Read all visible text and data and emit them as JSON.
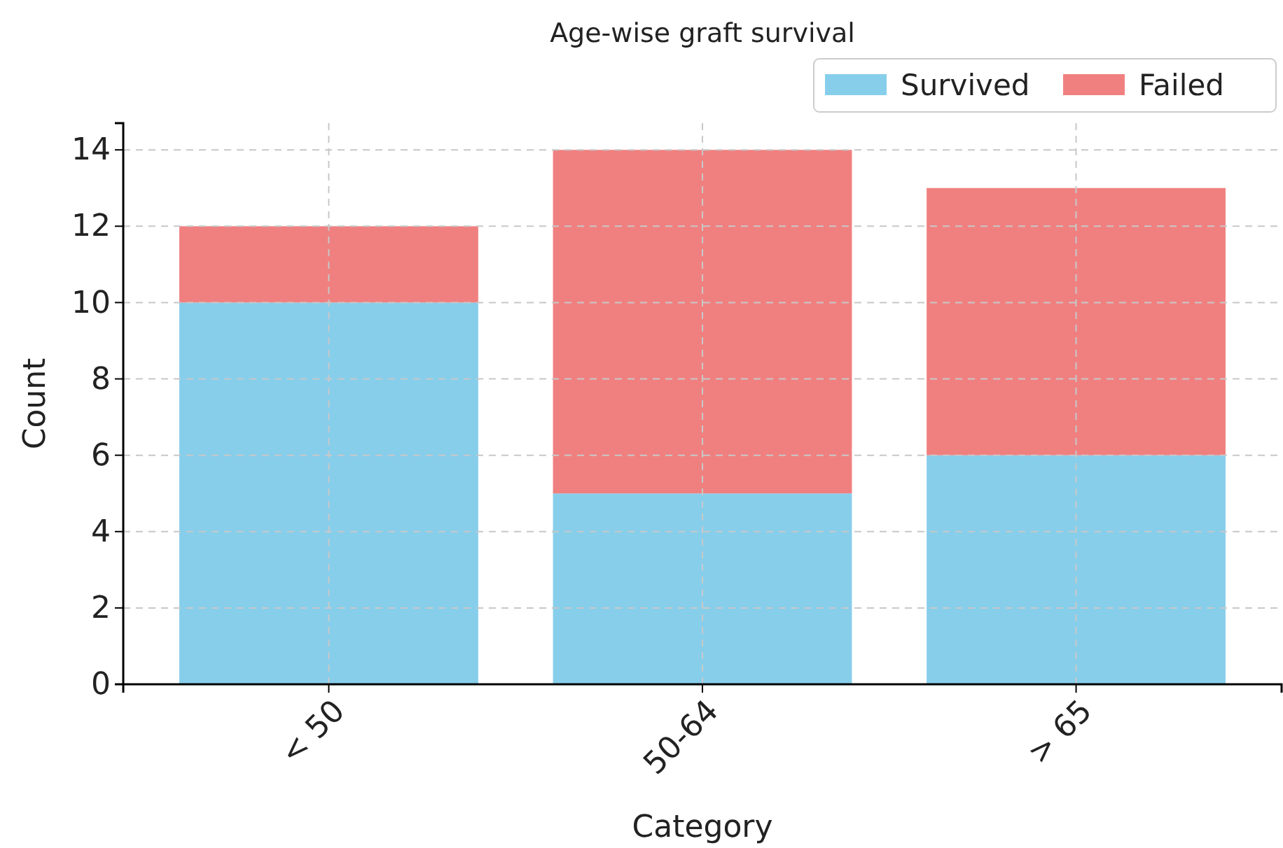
{
  "chart_data": {
    "type": "bar",
    "title": "Age-wise graft survival",
    "xlabel": "Category",
    "ylabel": "Count",
    "categories": [
      "< 50",
      "50-64",
      "> 65"
    ],
    "stacked": true,
    "series": [
      {
        "name": "Survived",
        "color": "#87ceeb",
        "values": [
          10,
          5,
          6
        ]
      },
      {
        "name": "Failed",
        "color": "#f08080",
        "values": [
          2,
          9,
          7
        ]
      }
    ],
    "ylim": [
      0,
      14.7
    ],
    "yticks": [
      0,
      2,
      4,
      6,
      8,
      10,
      12,
      14
    ],
    "grid": true,
    "legend": "top right"
  }
}
